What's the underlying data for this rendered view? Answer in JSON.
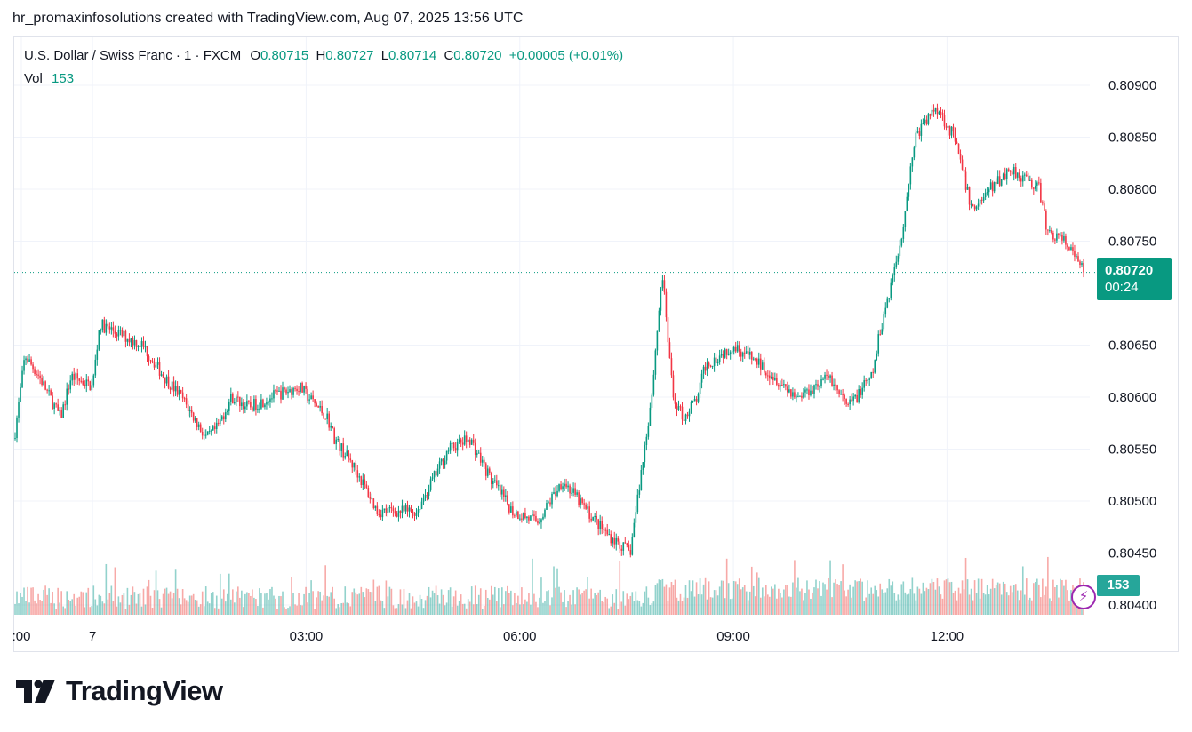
{
  "caption": "hr_promaxinfosolutions created with TradingView.com, Aug 07, 2025 13:56 UTC",
  "legend": {
    "symbol": "U.S. Dollar / Swiss Franc · 1 · FXCM",
    "open_label": "O",
    "open": "0.80715",
    "high_label": "H",
    "high": "0.80727",
    "low_label": "L",
    "low": "0.80714",
    "close_label": "C",
    "close": "0.80720",
    "change": "+0.00005 (+0.01%)",
    "vol_label": "Vol",
    "vol": "153"
  },
  "price_tag": {
    "price": "0.80720",
    "countdown": "00:24"
  },
  "vol_tag": "153",
  "brand": {
    "name": "TradingView"
  },
  "colors": {
    "up": "#089981",
    "down": "#f23645",
    "vol_up": "#26a69a",
    "vol_down": "#ef5350",
    "grid": "#f0f3fa",
    "marker": "#9c27b0"
  },
  "icons": {
    "bolt": "lightning-bolt-icon",
    "logo": "tradingview-logo-icon"
  },
  "chart_data": {
    "type": "candlestick",
    "title": "U.S. Dollar / Swiss Franc · 1 · FXCM",
    "ylim": [
      0.8038,
      0.8092
    ],
    "y_ticks": [
      "0.80900",
      "0.80850",
      "0.80800",
      "0.80750",
      "0.80650",
      "0.80600",
      "0.80550",
      "0.80500",
      "0.80450",
      "0.80400"
    ],
    "y_tick_values": [
      0.809,
      0.8085,
      0.808,
      0.8075,
      0.8065,
      0.806,
      0.8055,
      0.805,
      0.8045,
      0.804
    ],
    "x_ticks": [
      ":00",
      "7",
      "03:00",
      "06:00",
      "09:00",
      "12:00"
    ],
    "x_tick_hours": [
      -1,
      0,
      3,
      6,
      9,
      12
    ],
    "x_range_hours": [
      -1.1,
      13.93
    ],
    "last_price": 0.8072,
    "series_anchors": {
      "hours": [
        -1.1,
        -0.95,
        -0.75,
        -0.6,
        -0.45,
        -0.3,
        0,
        0.1,
        0.4,
        0.7,
        1.0,
        1.25,
        1.6,
        1.75,
        1.95,
        2.2,
        2.5,
        2.9,
        3.3,
        3.4,
        3.7,
        4.0,
        4.35,
        4.55,
        5.0,
        5.3,
        5.6,
        5.9,
        6.25,
        6.6,
        6.95,
        7.2,
        7.55,
        7.85,
        8.0,
        8.15,
        8.3,
        8.5,
        8.6,
        9.0,
        9.4,
        9.9,
        10.35,
        10.6,
        10.95,
        11.05,
        11.35,
        11.55,
        11.85,
        12.1,
        12.35,
        12.6,
        12.9,
        13.3,
        13.4,
        13.65,
        13.93
      ],
      "prices": [
        0.8056,
        0.8064,
        0.8062,
        0.806,
        0.8058,
        0.8062,
        0.8061,
        0.8067,
        0.8066,
        0.8065,
        0.8062,
        0.806,
        0.8056,
        0.8057,
        0.806,
        0.8059,
        0.806,
        0.8061,
        0.8058,
        0.8056,
        0.8053,
        0.8049,
        0.8049,
        0.8049,
        0.8055,
        0.8056,
        0.8052,
        0.8049,
        0.8048,
        0.8052,
        0.8049,
        0.8047,
        0.8045,
        0.806,
        0.8072,
        0.806,
        0.8058,
        0.806,
        0.8063,
        0.8065,
        0.8063,
        0.806,
        0.8062,
        0.8059,
        0.8062,
        0.8066,
        0.8075,
        0.8085,
        0.8088,
        0.8085,
        0.8078,
        0.808,
        0.8082,
        0.808,
        0.8076,
        0.8075,
        0.8072
      ]
    },
    "volume": {
      "typical_max": 160,
      "last": 153
    }
  }
}
